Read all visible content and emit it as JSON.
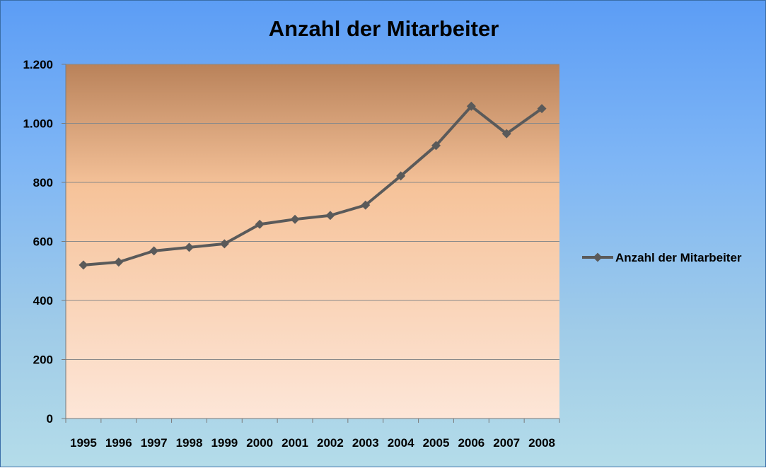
{
  "chart_data": {
    "type": "line",
    "title": "Anzahl der Mitarbeiter",
    "categories": [
      "1995",
      "1996",
      "1997",
      "1998",
      "1999",
      "2000",
      "2001",
      "2002",
      "2003",
      "2004",
      "2005",
      "2006",
      "2007",
      "2008"
    ],
    "series": [
      {
        "name": "Anzahl der Mitarbeiter",
        "values": [
          520,
          530,
          568,
          580,
          592,
          658,
          675,
          688,
          723,
          822,
          925,
          1058,
          965,
          1050
        ],
        "color": "#5a5a5a"
      }
    ],
    "ylim": [
      0,
      1200
    ],
    "yticks": [
      0,
      200,
      400,
      600,
      800,
      1000,
      1200
    ],
    "ytick_labels": [
      "0",
      "200",
      "400",
      "600",
      "800",
      "1.000",
      "1.200"
    ],
    "xlabel": "",
    "ylabel": "",
    "grid": true,
    "legend_position": "right",
    "plot_gradient": [
      "#b9825a",
      "#f6c39a",
      "#fde6d8"
    ]
  }
}
